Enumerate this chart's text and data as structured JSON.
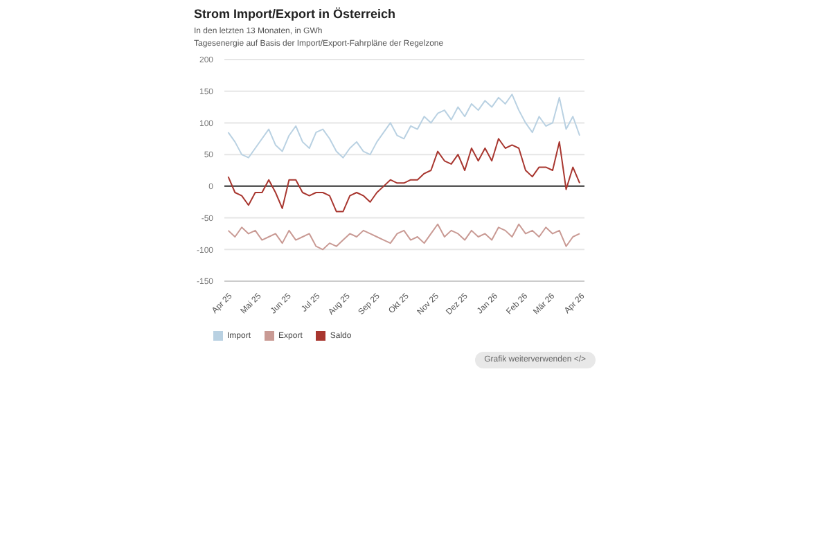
{
  "chart_data": {
    "type": "line",
    "title": "Strom Import/Export in Österreich",
    "subtitle": "In den letzten 13 Monaten, in GWh\nTagesenergie auf Basis der Import/Export-Fahrpläne der Regelzone",
    "x": [
      "2025-04-01",
      "2025-04-08",
      "2025-04-15",
      "2025-04-22",
      "2025-04-29",
      "2025-05-06",
      "2025-05-13",
      "2025-05-20",
      "2025-05-27",
      "2025-06-03",
      "2025-06-10",
      "2025-06-17",
      "2025-06-24",
      "2025-07-01",
      "2025-07-08",
      "2025-07-15",
      "2025-07-22",
      "2025-07-29",
      "2025-08-05",
      "2025-08-12",
      "2025-08-19",
      "2025-08-26",
      "2025-09-02",
      "2025-09-09",
      "2025-09-16",
      "2025-09-23",
      "2025-09-30",
      "2025-10-07",
      "2025-10-14",
      "2025-10-21",
      "2025-10-28",
      "2025-11-04",
      "2025-11-11",
      "2025-11-18",
      "2025-11-25",
      "2025-12-02",
      "2025-12-09",
      "2025-12-16",
      "2025-12-23",
      "2025-12-30",
      "2026-01-06",
      "2026-01-13",
      "2026-01-20",
      "2026-01-27",
      "2026-02-03",
      "2026-02-10",
      "2026-02-17",
      "2026-02-24",
      "2026-03-03",
      "2026-03-10",
      "2026-03-17",
      "2026-03-24",
      "2026-03-31"
    ],
    "series": [
      {
        "name": "Import",
        "color": "#b9d1e2",
        "values": [
          85,
          70,
          50,
          45,
          60,
          75,
          90,
          65,
          55,
          80,
          95,
          70,
          60,
          85,
          90,
          75,
          55,
          45,
          60,
          70,
          55,
          50,
          70,
          85,
          100,
          80,
          75,
          95,
          90,
          110,
          100,
          115,
          120,
          105,
          125,
          110,
          130,
          120,
          135,
          125,
          140,
          130,
          145,
          120,
          100,
          85,
          110,
          95,
          100,
          140,
          90,
          110,
          80
        ]
      },
      {
        "name": "Export",
        "color": "#c99a94",
        "values": [
          -70,
          -80,
          -65,
          -75,
          -70,
          -85,
          -80,
          -75,
          -90,
          -70,
          -85,
          -80,
          -75,
          -95,
          -100,
          -90,
          -95,
          -85,
          -75,
          -80,
          -70,
          -75,
          -80,
          -85,
          -90,
          -75,
          -70,
          -85,
          -80,
          -90,
          -75,
          -60,
          -80,
          -70,
          -75,
          -85,
          -70,
          -80,
          -75,
          -85,
          -65,
          -70,
          -80,
          -60,
          -75,
          -70,
          -80,
          -65,
          -75,
          -70,
          -95,
          -80,
          -75
        ]
      },
      {
        "name": "Saldo",
        "color": "#a8362f",
        "values": [
          15,
          -10,
          -15,
          -30,
          -10,
          -10,
          10,
          -10,
          -35,
          10,
          10,
          -10,
          -15,
          -10,
          -10,
          -15,
          -40,
          -40,
          -15,
          -10,
          -15,
          -25,
          -10,
          0,
          10,
          5,
          5,
          10,
          10,
          20,
          25,
          55,
          40,
          35,
          50,
          25,
          60,
          40,
          60,
          40,
          75,
          60,
          65,
          60,
          25,
          15,
          30,
          30,
          25,
          70,
          -5,
          30,
          5
        ]
      }
    ],
    "xlim": [
      "2025-03-28",
      "2026-04-05"
    ],
    "xticks": [
      {
        "value": "2025-04-01",
        "label": "Apr 25"
      },
      {
        "value": "2025-05-01",
        "label": "Mai 25"
      },
      {
        "value": "2025-06-01",
        "label": "Jun 25"
      },
      {
        "value": "2025-07-01",
        "label": "Jul 25"
      },
      {
        "value": "2025-08-01",
        "label": "Aug 25"
      },
      {
        "value": "2025-09-01",
        "label": "Sep 25"
      },
      {
        "value": "2025-10-01",
        "label": "Okt 25"
      },
      {
        "value": "2025-11-01",
        "label": "Nov 25"
      },
      {
        "value": "2025-12-01",
        "label": "Dez 25"
      },
      {
        "value": "2026-01-01",
        "label": "Jan 26"
      },
      {
        "value": "2026-02-01",
        "label": "Feb 26"
      },
      {
        "value": "2026-03-01",
        "label": "Mär 26"
      },
      {
        "value": "2026-04-01",
        "label": "Apr 26"
      }
    ],
    "ylim": [
      -150,
      200
    ],
    "yticks": [
      -150,
      -100,
      -50,
      0,
      50,
      100,
      150,
      200
    ],
    "grid": "y",
    "legend": "bottom",
    "marker": "none",
    "line_style": "solid",
    "ref_lines": [
      {
        "axis": "y",
        "value": 0,
        "color": "#333333"
      }
    ],
    "annotations": [
      "Grafik weiterverwenden </>"
    ]
  }
}
